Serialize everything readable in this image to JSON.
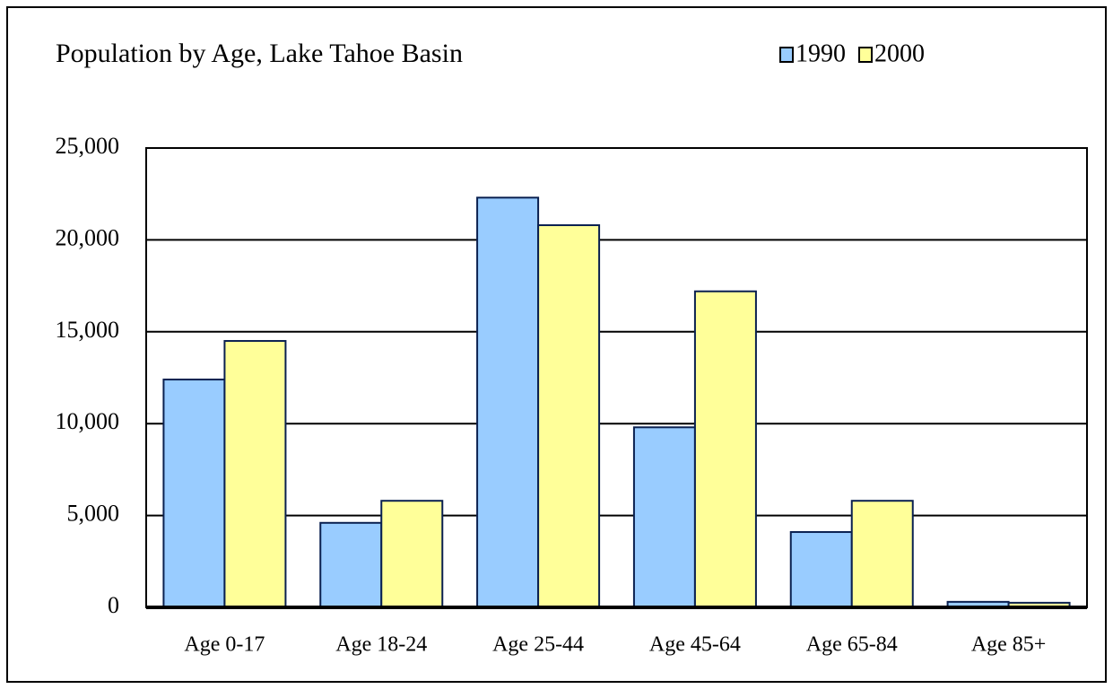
{
  "chart_data": {
    "type": "bar",
    "title": "Population by Age, Lake Tahoe Basin",
    "categories": [
      "Age 0-17",
      "Age 18-24",
      "Age 25-44",
      "Age 45-64",
      "Age 65-84",
      "Age 85+"
    ],
    "series": [
      {
        "name": "1990",
        "color": "#99ccff",
        "values": [
          12400,
          4600,
          22300,
          9800,
          4100,
          300
        ]
      },
      {
        "name": "2000",
        "color": "#ffff99",
        "values": [
          14500,
          5800,
          20800,
          17200,
          5800,
          250
        ]
      }
    ],
    "ylim": [
      0,
      25000
    ],
    "yticks": [
      0,
      {
        "value": 5000,
        "label": "5,000"
      },
      {
        "value": 10000,
        "label": "10,000"
      },
      {
        "value": 15000,
        "label": "15,000"
      },
      {
        "value": 20000,
        "label": "20,000"
      },
      {
        "value": 25000,
        "label": "25,000"
      }
    ],
    "grid": true,
    "legend": "top-right"
  }
}
